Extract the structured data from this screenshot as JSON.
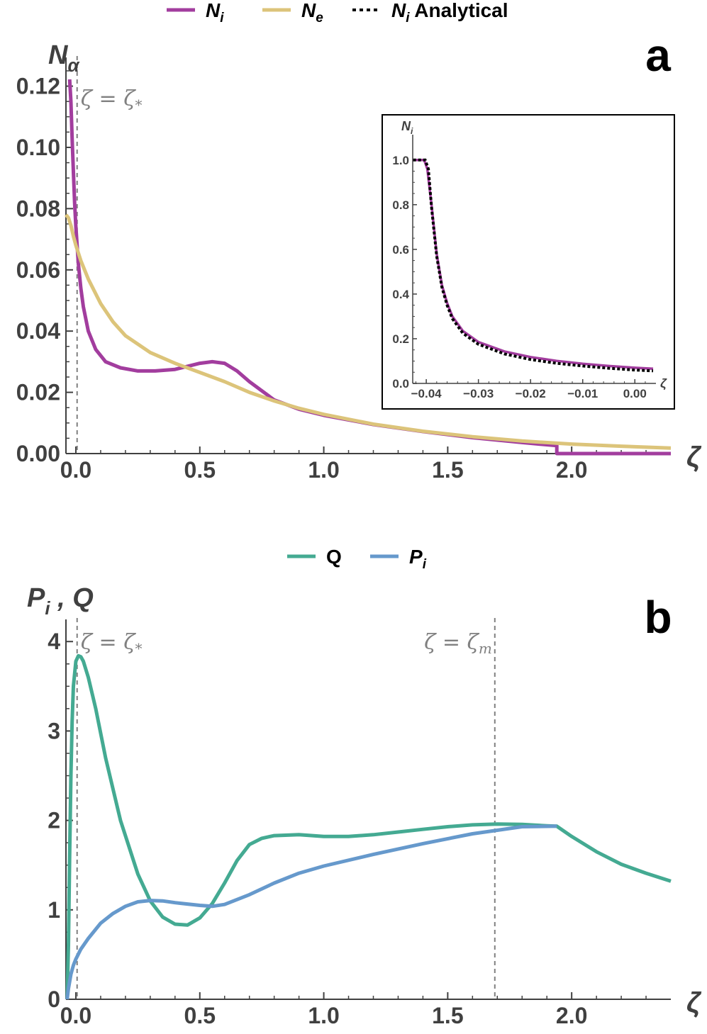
{
  "colors": {
    "Ni": "#A23D9E",
    "Ne": "#DCC47A",
    "analytical": "#000000",
    "Q": "#44AA92",
    "Pi": "#6699CC",
    "axis": "#404040",
    "ref": "#808080"
  },
  "chart_data": [
    {
      "id": "panel-a",
      "type": "line",
      "panel_label": "a",
      "ylabel": "N",
      "ylabel_sub": "α",
      "xlabel": "ζ",
      "xlim": [
        -0.04,
        2.4
      ],
      "ylim": [
        0,
        0.128
      ],
      "x_ticks": [
        "0.0",
        "0.5",
        "1.0",
        "1.5",
        "2.0"
      ],
      "x_tick_values": [
        0,
        0.5,
        1.0,
        1.5,
        2.0
      ],
      "y_ticks": [
        "0.00",
        "0.02",
        "0.04",
        "0.06",
        "0.08",
        "0.10",
        "0.12"
      ],
      "y_tick_values": [
        0,
        0.02,
        0.04,
        0.06,
        0.08,
        0.1,
        0.12
      ],
      "ref_lines": [
        {
          "x": 0.005,
          "label": "ζ = ζ",
          "sub": "*"
        }
      ],
      "legend": [
        {
          "label": "N",
          "sub": "i",
          "suffix": "",
          "key": "Ni",
          "style": "solid"
        },
        {
          "label": "N",
          "sub": "e",
          "suffix": "",
          "key": "Ne",
          "style": "solid"
        },
        {
          "label": "N",
          "sub": "i",
          "suffix": " Analytical",
          "key": "analytical",
          "style": "dotted"
        }
      ],
      "series": [
        {
          "name": "Ni",
          "x": [
            -0.025,
            -0.02,
            -0.015,
            -0.01,
            -0.005,
            0.0,
            0.01,
            0.02,
            0.03,
            0.05,
            0.08,
            0.12,
            0.18,
            0.25,
            0.32,
            0.4,
            0.45,
            0.5,
            0.55,
            0.6,
            0.65,
            0.7,
            0.8,
            0.9,
            1.0,
            1.2,
            1.4,
            1.6,
            1.8,
            1.94,
            1.94,
            2.4
          ],
          "y": [
            0.128,
            0.115,
            0.103,
            0.092,
            0.082,
            0.074,
            0.062,
            0.054,
            0.048,
            0.04,
            0.034,
            0.03,
            0.028,
            0.027,
            0.027,
            0.0275,
            0.0285,
            0.0295,
            0.03,
            0.0295,
            0.027,
            0.0235,
            0.0175,
            0.0145,
            0.0125,
            0.0095,
            0.0072,
            0.0052,
            0.0036,
            0.0026,
            0.0,
            0.0
          ]
        },
        {
          "name": "Ne",
          "x": [
            -0.04,
            -0.03,
            -0.02,
            -0.01,
            0.0,
            0.02,
            0.05,
            0.1,
            0.15,
            0.2,
            0.3,
            0.4,
            0.5,
            0.6,
            0.7,
            0.8,
            0.9,
            1.0,
            1.2,
            1.4,
            1.6,
            1.8,
            2.0,
            2.2,
            2.4
          ],
          "y": [
            0.078,
            0.077,
            0.0745,
            0.071,
            0.068,
            0.063,
            0.057,
            0.049,
            0.043,
            0.0385,
            0.033,
            0.0295,
            0.0265,
            0.0235,
            0.02,
            0.0172,
            0.0148,
            0.0128,
            0.0096,
            0.0073,
            0.0055,
            0.0041,
            0.0031,
            0.0024,
            0.0018
          ]
        }
      ]
    },
    {
      "id": "panel-a-inset",
      "type": "line",
      "ylabel": "N",
      "ylabel_sub": "i",
      "xlabel": "ζ",
      "xlim": [
        -0.0426,
        0.0035
      ],
      "ylim": [
        0,
        1.05
      ],
      "x_ticks": [
        "−0.04",
        "−0.03",
        "−0.02",
        "−0.01",
        "0.00"
      ],
      "x_tick_values": [
        -0.04,
        -0.03,
        -0.02,
        -0.01,
        0.0
      ],
      "y_ticks": [
        "0.0",
        "0.2",
        "0.4",
        "0.6",
        "0.8",
        "1.0"
      ],
      "y_tick_values": [
        0,
        0.2,
        0.4,
        0.6,
        0.8,
        1.0
      ],
      "series": [
        {
          "name": "Ni",
          "x": [
            -0.0425,
            -0.0404,
            -0.0398,
            -0.039,
            -0.038,
            -0.037,
            -0.036,
            -0.035,
            -0.033,
            -0.03,
            -0.025,
            -0.02,
            -0.015,
            -0.01,
            -0.005,
            0.0,
            0.0035
          ],
          "y": [
            1.0,
            1.0,
            0.96,
            0.8,
            0.58,
            0.44,
            0.36,
            0.3,
            0.235,
            0.185,
            0.143,
            0.118,
            0.101,
            0.088,
            0.078,
            0.07,
            0.066
          ]
        },
        {
          "name": "analytical",
          "x": [
            -0.0425,
            -0.0402,
            -0.0396,
            -0.039,
            -0.038,
            -0.037,
            -0.036,
            -0.035,
            -0.033,
            -0.03,
            -0.025,
            -0.02,
            -0.015,
            -0.01,
            -0.005,
            0.0,
            0.0035
          ],
          "y": [
            1.0,
            1.0,
            0.96,
            0.79,
            0.57,
            0.43,
            0.35,
            0.29,
            0.225,
            0.175,
            0.132,
            0.107,
            0.09,
            0.078,
            0.068,
            0.06,
            0.056
          ]
        }
      ]
    },
    {
      "id": "panel-b",
      "type": "line",
      "panel_label": "b",
      "ylabel": "P",
      "ylabel_sub": "i",
      "ylabel_suffix": " , Q",
      "xlabel": "ζ",
      "xlim": [
        -0.04,
        2.4
      ],
      "ylim": [
        0,
        4.2
      ],
      "x_ticks": [
        "0.0",
        "0.5",
        "1.0",
        "1.5",
        "2.0"
      ],
      "x_tick_values": [
        0,
        0.5,
        1.0,
        1.5,
        2.0
      ],
      "y_ticks": [
        "0",
        "1",
        "2",
        "3",
        "4"
      ],
      "y_tick_values": [
        0,
        1,
        2,
        3,
        4
      ],
      "ref_lines": [
        {
          "x": 0.005,
          "label": "ζ = ζ",
          "sub": "*"
        },
        {
          "x": 1.69,
          "label": "ζ = ζ",
          "sub": "m"
        }
      ],
      "legend": [
        {
          "label": "Q",
          "sub": "",
          "suffix": "",
          "key": "Q",
          "style": "solid"
        },
        {
          "label": "P",
          "sub": "i",
          "suffix": "",
          "key": "Pi",
          "style": "solid"
        }
      ],
      "series": [
        {
          "name": "Q",
          "x": [
            -0.035,
            -0.03,
            -0.025,
            -0.02,
            -0.015,
            -0.01,
            0.0,
            0.01,
            0.02,
            0.03,
            0.05,
            0.08,
            0.12,
            0.18,
            0.25,
            0.3,
            0.35,
            0.4,
            0.45,
            0.5,
            0.55,
            0.6,
            0.65,
            0.7,
            0.75,
            0.8,
            0.9,
            1.0,
            1.1,
            1.2,
            1.3,
            1.4,
            1.5,
            1.6,
            1.7,
            1.8,
            1.9,
            1.94,
            2.0,
            2.1,
            2.2,
            2.3,
            2.4
          ],
          "y": [
            0.0,
            0.6,
            1.6,
            2.5,
            3.1,
            3.5,
            3.78,
            3.84,
            3.83,
            3.78,
            3.6,
            3.25,
            2.7,
            2.0,
            1.4,
            1.1,
            0.92,
            0.84,
            0.83,
            0.91,
            1.07,
            1.3,
            1.55,
            1.73,
            1.8,
            1.83,
            1.84,
            1.82,
            1.82,
            1.84,
            1.87,
            1.9,
            1.93,
            1.95,
            1.96,
            1.955,
            1.94,
            1.935,
            1.82,
            1.65,
            1.51,
            1.41,
            1.32
          ]
        },
        {
          "name": "Pi",
          "x": [
            -0.035,
            -0.03,
            -0.02,
            -0.01,
            0.0,
            0.02,
            0.05,
            0.1,
            0.15,
            0.2,
            0.25,
            0.3,
            0.35,
            0.4,
            0.45,
            0.5,
            0.55,
            0.6,
            0.7,
            0.8,
            0.9,
            1.0,
            1.2,
            1.4,
            1.6,
            1.8,
            1.94
          ],
          "y": [
            0.0,
            0.12,
            0.28,
            0.38,
            0.45,
            0.56,
            0.68,
            0.85,
            0.96,
            1.04,
            1.09,
            1.105,
            1.1,
            1.08,
            1.065,
            1.05,
            1.04,
            1.06,
            1.17,
            1.3,
            1.41,
            1.49,
            1.62,
            1.74,
            1.85,
            1.93,
            1.935
          ]
        }
      ]
    }
  ]
}
